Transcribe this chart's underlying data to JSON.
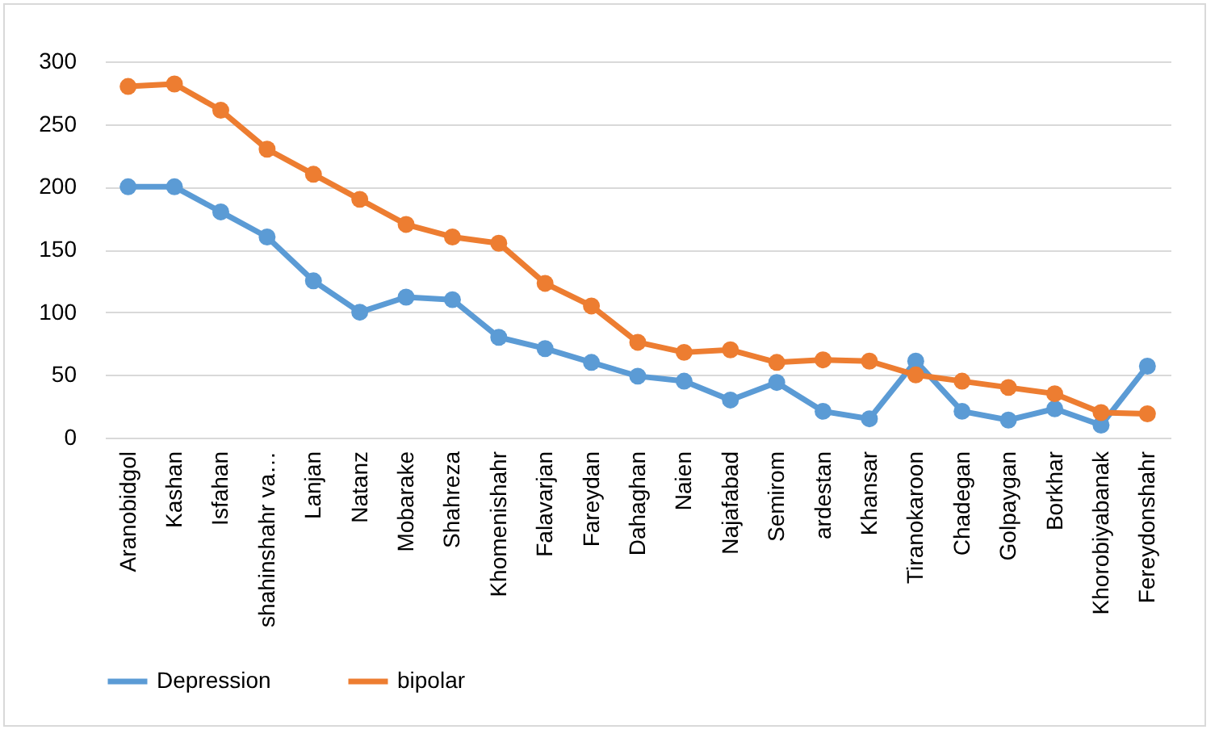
{
  "chart_data": {
    "type": "line",
    "categories": [
      "Aranobidgol",
      "Kashan",
      "Isfahan",
      "shahinshahr va…",
      "Lanjan",
      "Natanz",
      "Mobarake",
      "Shahreza",
      "Khomenishahr",
      "Falavarjan",
      "Fareydan",
      "Dahaghan",
      "Naien",
      "Najafabad",
      "Semirom",
      "ardestan",
      "Khansar",
      "Tiranokaroon",
      "Chadegan",
      "Golpaygan",
      "Borkhar",
      "Khorobiyabanak",
      "Fereydonshahr"
    ],
    "series": [
      {
        "name": "Depression",
        "color": "#5b9bd5",
        "values": [
          200,
          200,
          180,
          160,
          125,
          100,
          112,
          110,
          80,
          71,
          60,
          49,
          45,
          30,
          44,
          21,
          15,
          61,
          21,
          14,
          23,
          10,
          57
        ]
      },
      {
        "name": "bipolar",
        "color": "#ed7d31",
        "values": [
          280,
          282,
          261,
          230,
          210,
          190,
          170,
          160,
          155,
          123,
          105,
          76,
          68,
          70,
          60,
          62,
          61,
          50,
          45,
          40,
          35,
          20,
          19
        ]
      }
    ],
    "ylim": [
      0,
      300
    ],
    "yticks": [
      0,
      50,
      100,
      150,
      200,
      250,
      300
    ],
    "grid": "y",
    "legend": "bottom",
    "marker": "circle",
    "line_style": "solid"
  }
}
